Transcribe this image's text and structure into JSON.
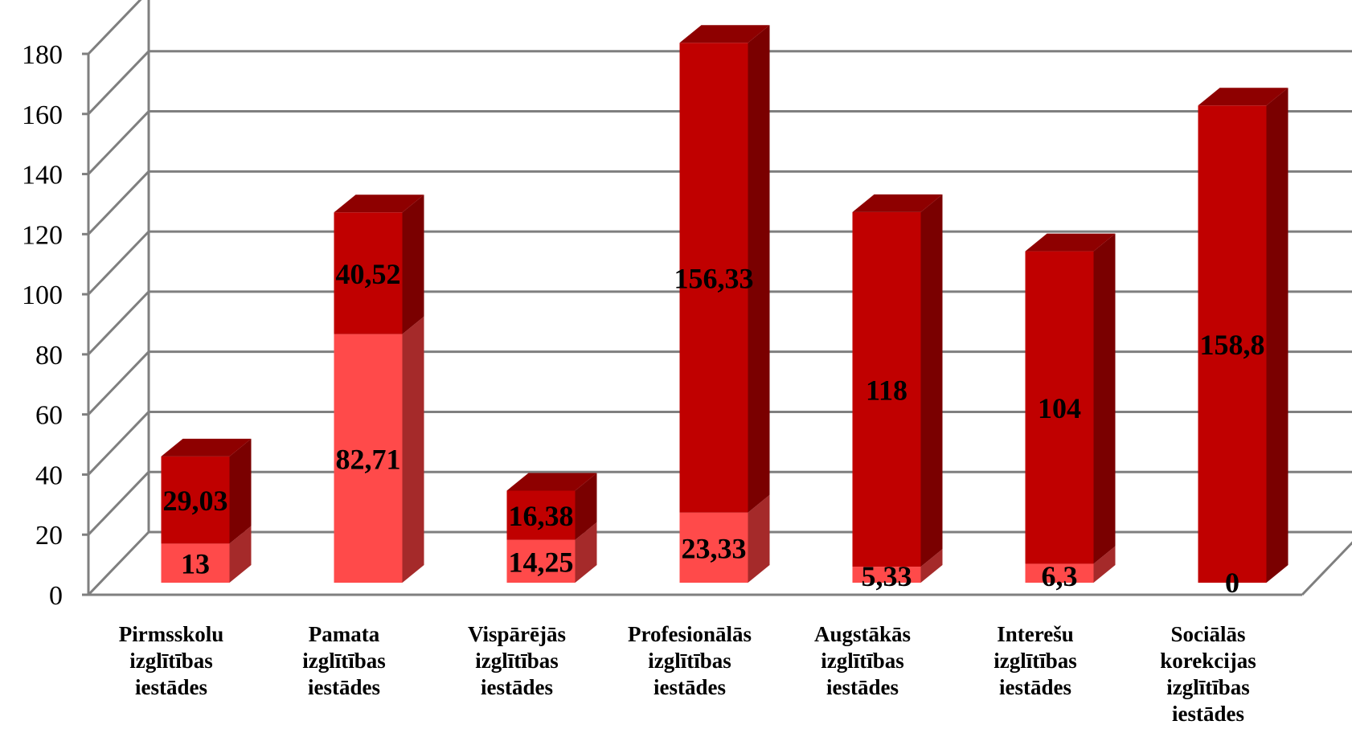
{
  "chart_data": {
    "type": "bar",
    "stacked": true,
    "three_d": true,
    "title": "",
    "xlabel": "",
    "ylabel": "",
    "ylim": [
      0,
      180
    ],
    "yticks": [
      "0",
      "20",
      "40",
      "60",
      "80",
      "100",
      "120",
      "140",
      "160",
      "180"
    ],
    "grid": true,
    "legend": "none",
    "categories": [
      [
        "Pirmsskolu",
        "izglītības",
        "iestādes"
      ],
      [
        "Pamata",
        "izglītības",
        "iestādes"
      ],
      [
        "Vispārējās",
        "izglītības",
        "iestādes"
      ],
      [
        "Profesionālās",
        "izglītības",
        "iestādes"
      ],
      [
        "Augstākās",
        "izglītības",
        "iestādes"
      ],
      [
        "Interešu",
        "izglītības",
        "iestādes"
      ],
      [
        "Sociālās",
        "korekcijas",
        "izglītības",
        "iestādes"
      ]
    ],
    "series": [
      {
        "values": [
          13,
          82.71,
          14.25,
          23.33,
          5.33,
          6.3,
          0
        ],
        "labels": [
          "13",
          "82,71",
          "14,25",
          "23,33",
          "5,33",
          "6,3",
          "0"
        ],
        "color": "#ff4a4a",
        "side_color": "#a52a2a",
        "top_color": "#c83030"
      },
      {
        "values": [
          29.03,
          40.52,
          16.38,
          156.33,
          118,
          104,
          158.8
        ],
        "labels": [
          "29,03",
          "40,52",
          "16,38",
          "156,33",
          "118",
          "104",
          "158,8"
        ],
        "color": "#c00000",
        "side_color": "#7a0000",
        "top_color": "#8e0000"
      }
    ],
    "colors": {
      "grid": "#7f7f7f",
      "axis": "#7f7f7f",
      "background": "#ffffff"
    }
  }
}
